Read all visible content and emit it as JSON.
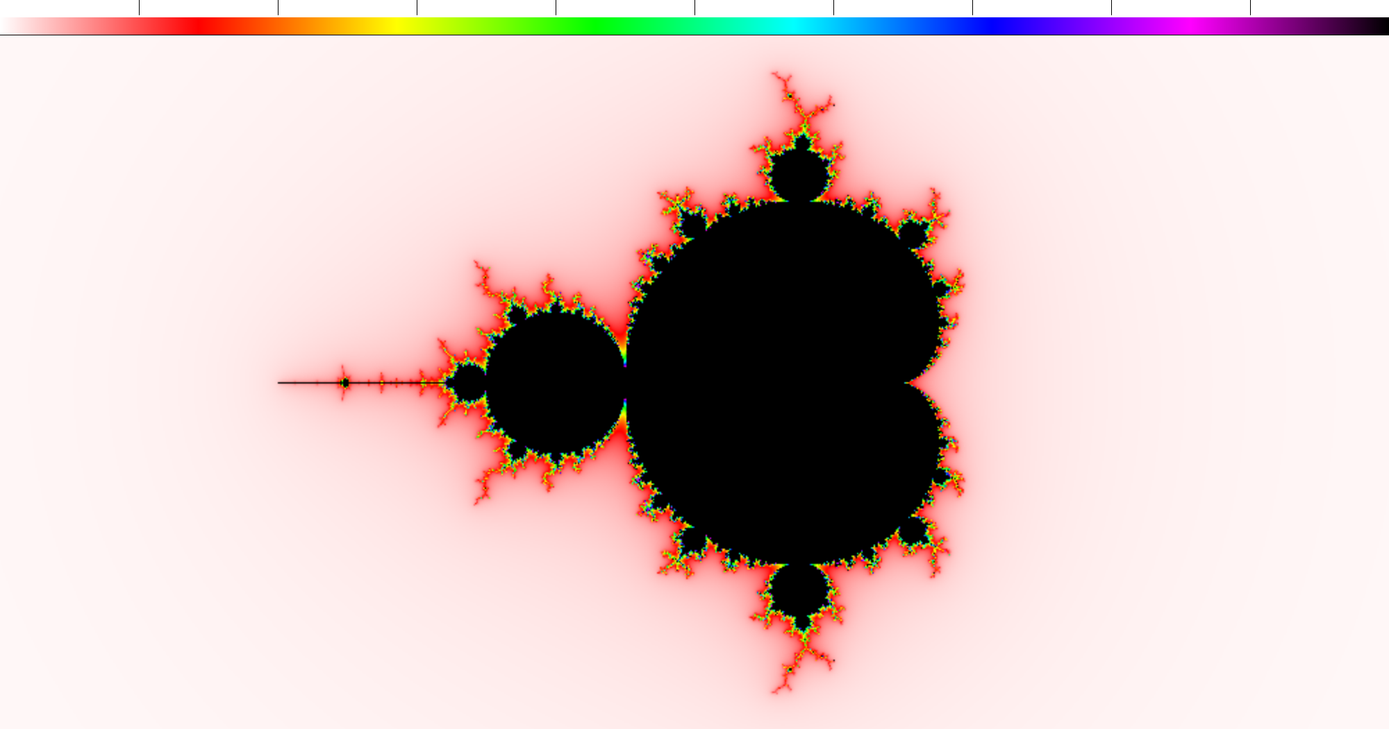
{
  "palette": {
    "stops": [
      "#ffffff",
      "#ff0000",
      "#ffff00",
      "#00ff00",
      "#00ffff",
      "#0000ff",
      "#ff00ff",
      "#000000"
    ],
    "tick_count": 9
  },
  "fractal": {
    "type": "mandelbrot",
    "view_center": [
      -0.5,
      0.0
    ],
    "view_height": 2.5,
    "max_iterations": 256,
    "set_color": "#000000",
    "background_color": "#ffffff",
    "icon": "mandelbrot-set"
  }
}
